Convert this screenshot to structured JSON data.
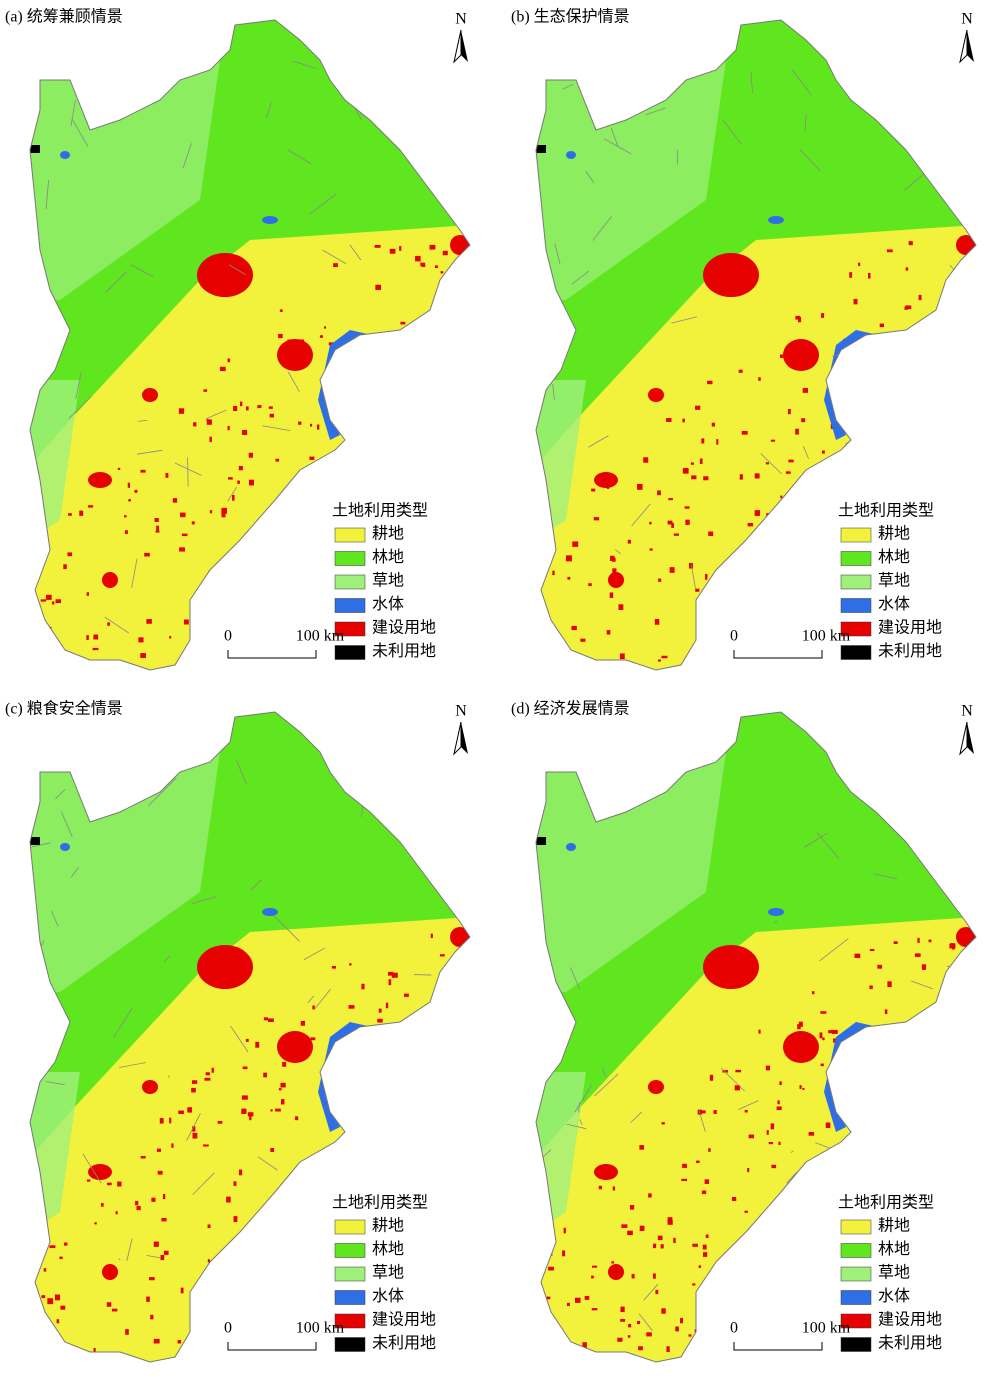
{
  "panels": [
    {
      "title": "(a) 统筹兼顾情景"
    },
    {
      "title": "(b) 生态保护情景"
    },
    {
      "title": "(c) 粮食安全情景"
    },
    {
      "title": "(d) 经济发展情景"
    }
  ],
  "north": "N",
  "legend": {
    "title": "土地利用类型",
    "items": [
      {
        "label": "耕地",
        "color": "#f2f23c"
      },
      {
        "label": "林地",
        "color": "#5fe61e"
      },
      {
        "label": "草地",
        "color": "#a0f07c"
      },
      {
        "label": "水体",
        "color": "#2f6fe6"
      },
      {
        "label": "建设用地",
        "color": "#e60000"
      },
      {
        "label": "未利用地",
        "color": "#000000"
      }
    ]
  },
  "scale": {
    "start": "0",
    "end": "100 km"
  }
}
